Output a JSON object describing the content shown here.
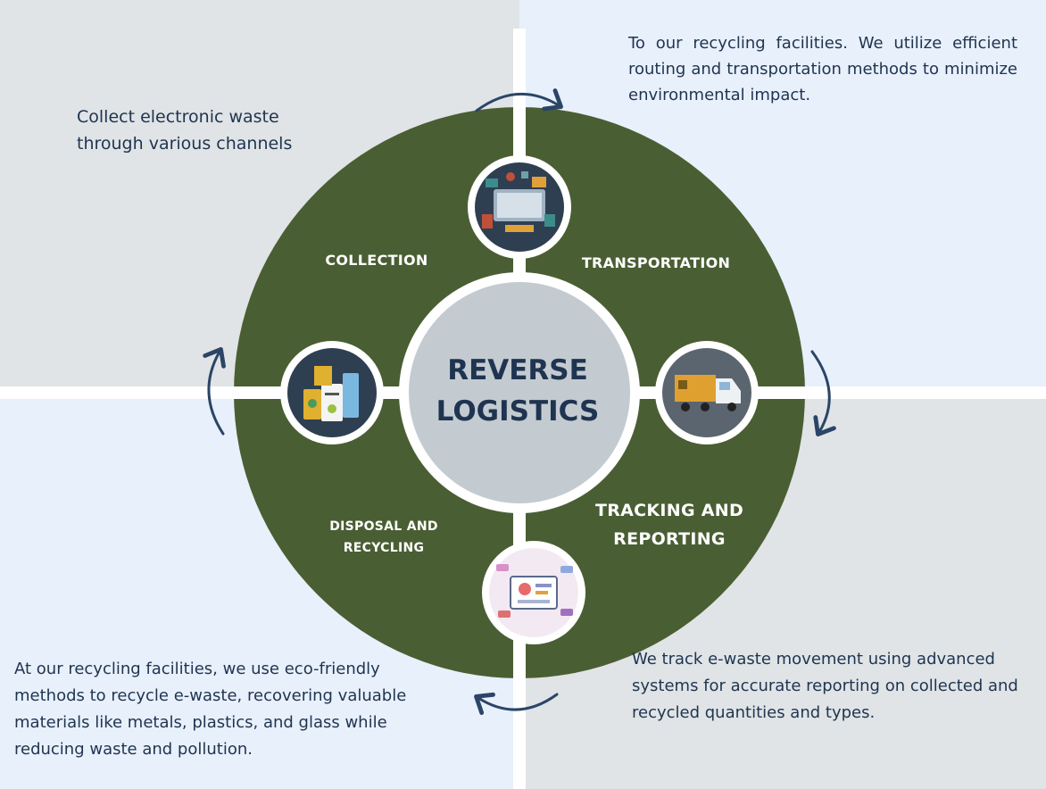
{
  "center": {
    "title": "REVERSE LOGISTICS"
  },
  "stages": {
    "collection": {
      "label": "COLLECTION",
      "description": "Collect electronic waste through various channels",
      "icon": "electronics-pile-icon"
    },
    "transportation": {
      "label": "TRANSPORTATION",
      "description": "To our recycling facilities. We utilize efficient routing and transportation methods to minimize environmental impact.",
      "icon": "truck-icon"
    },
    "tracking": {
      "label": "TRACKING AND REPORTING",
      "description": "We track e-waste movement using advanced systems for accurate reporting on collected and recycled quantities and types.",
      "icon": "dashboard-icon"
    },
    "disposal": {
      "label": "DISPOSAL AND RECYCLING",
      "description": "At our recycling facilities, we use eco-friendly methods to recycle e-waste, recovering valuable materials like metals, plastics, and glass while reducing waste and pollution.",
      "icon": "recycling-bins-icon"
    }
  },
  "colors": {
    "wheel": "#4a5e33",
    "center": "#c3cbd1",
    "text": "#1f3450",
    "arrow": "#2b4566",
    "bg_gray": "#e0e4e6",
    "bg_blue": "#e8f0fb"
  }
}
